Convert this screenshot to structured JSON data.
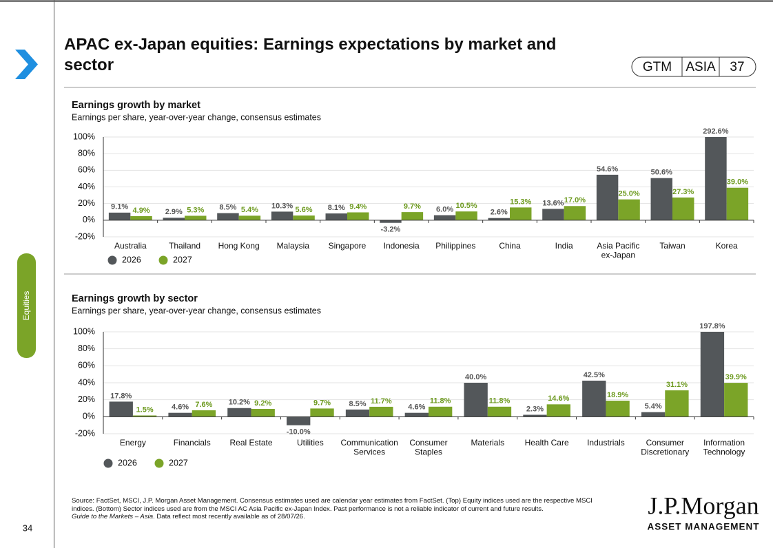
{
  "header": {
    "title": "APAC ex-Japan equities: Earnings expectations by market and sector",
    "badge": [
      "GTM",
      "ASIA",
      "37"
    ],
    "side_tab": "Equities"
  },
  "chart_data": [
    {
      "type": "bar",
      "title": "Earnings growth by market",
      "subtitle": "Earnings per share, year-over-year change, consensus estimates",
      "categories": [
        "Australia",
        "Thailand",
        "Hong Kong",
        "Malaysia",
        "Singapore",
        "Indonesia",
        "Philippines",
        "China",
        "India",
        "Asia Pacific\nex-Japan",
        "Taiwan",
        "Korea"
      ],
      "series": [
        {
          "name": "2026",
          "color": "#53575a",
          "values": [
            9.1,
            2.9,
            8.5,
            10.3,
            8.1,
            -3.2,
            6,
            2.6,
            13.6,
            54.6,
            50.6,
            292.6
          ],
          "value_labels": [
            "9.1%",
            "2.9%",
            "8.5%",
            "10.3%",
            "8.1%",
            "-3.2%",
            "6.0%",
            "2.6%",
            "13.6%",
            "54.6%",
            "50.6%",
            "292.6%"
          ]
        },
        {
          "name": "2027",
          "color": "#7ba428",
          "values": [
            4.9,
            5.3,
            5.4,
            5.6,
            9.4,
            9.7,
            10.5,
            15.3,
            17,
            25,
            27.3,
            39
          ],
          "value_labels": [
            "4.9%",
            "5.3%",
            "5.4%",
            "5.6%",
            "9.4%",
            "9.7%",
            "10.5%",
            "15.3%",
            "17.0%",
            "25.0%",
            "27.3%",
            "39.0%"
          ]
        }
      ],
      "ylim": [
        -20,
        100
      ],
      "yticks": [
        {
          "value": -20,
          "label": "-20%"
        },
        {
          "value": 0,
          "label": "0%"
        },
        {
          "value": 20,
          "label": "20%"
        },
        {
          "value": 40,
          "label": "40%"
        },
        {
          "value": 60,
          "label": "60%"
        },
        {
          "value": 80,
          "label": "80%"
        },
        {
          "value": 100,
          "label": "100%"
        }
      ],
      "grid": true,
      "legend": "bottom-left"
    },
    {
      "type": "bar",
      "title": "Earnings growth by sector",
      "subtitle": "Earnings per share, year-over-year change, consensus estimates",
      "categories": [
        "Energy",
        "Financials",
        "Real Estate",
        "Utilities",
        "Communication\nServices",
        "Consumer\nStaples",
        "Materials",
        "Health Care",
        "Industrials",
        "Consumer\nDiscretionary",
        "Information\nTechnology"
      ],
      "series": [
        {
          "name": "2026",
          "color": "#53575a",
          "values": [
            17.8,
            4.6,
            10.2,
            -10,
            8.5,
            4.6,
            40,
            2.3,
            42.5,
            5.4,
            197.8
          ],
          "value_labels": [
            "17.8%",
            "4.6%",
            "10.2%",
            "-10.0%",
            "8.5%",
            "4.6%",
            "40.0%",
            "2.3%",
            "42.5%",
            "5.4%",
            "197.8%"
          ]
        },
        {
          "name": "2027",
          "color": "#7ba428",
          "values": [
            1.5,
            7.6,
            9.2,
            9.7,
            11.7,
            11.8,
            11.8,
            14.6,
            18.9,
            31.1,
            39.9
          ],
          "value_labels": [
            "1.5%",
            "7.6%",
            "9.2%",
            "9.7%",
            "11.7%",
            "11.8%",
            "11.8%",
            "14.6%",
            "18.9%",
            "31.1%",
            "39.9%"
          ]
        }
      ],
      "ylim": [
        -20,
        100
      ],
      "yticks": [
        {
          "value": -20,
          "label": "-20%"
        },
        {
          "value": 0,
          "label": "0%"
        },
        {
          "value": 20,
          "label": "20%"
        },
        {
          "value": 40,
          "label": "40%"
        },
        {
          "value": 60,
          "label": "60%"
        },
        {
          "value": 80,
          "label": "80%"
        },
        {
          "value": 100,
          "label": "100%"
        }
      ],
      "grid": true,
      "legend": "bottom-left"
    }
  ],
  "footer": {
    "source": "Source: FactSet, MSCI, J.P. Morgan Asset Management. Consensus estimates used are calendar year estimates from FactSet. (Top) Equity indices used are the respective MSCI indices. (Bottom) Sector indices used are from the MSCI AC Asia Pacific ex-Japan Index. Past performance is not a reliable indicator of current and future results.",
    "guide": "Guide to the Markets – Asia",
    "note": ". Data reflect most recently available as of 28/07/26.",
    "page_number": "34",
    "logo": "J.P.Morgan",
    "logo_sub": "ASSET MANAGEMENT"
  }
}
